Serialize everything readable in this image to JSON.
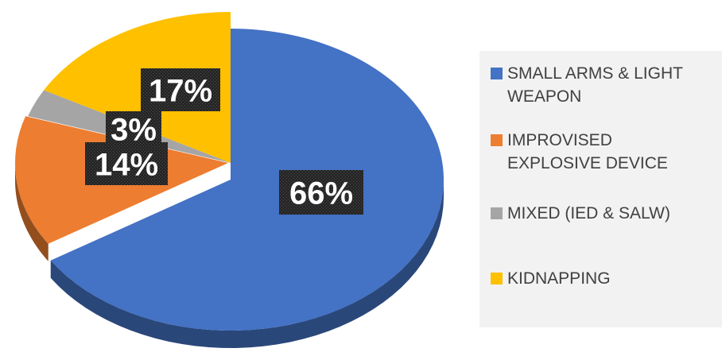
{
  "chart_data": {
    "type": "pie",
    "title": "",
    "series": [
      {
        "values": [
          66,
          14,
          3,
          17
        ]
      }
    ],
    "slices": [
      {
        "label": "SMALL ARMS & LIGHT WEAPON",
        "value": 66,
        "display": "66%",
        "color": "#4472c4"
      },
      {
        "label": "IMPROVISED EXPLOSIVE DEVICE",
        "value": 14,
        "display": "14%",
        "color": "#ed7d31"
      },
      {
        "label": "MIXED (IED & SALW)",
        "value": 3,
        "display": "3%",
        "color": "#a5a5a5"
      },
      {
        "label": "KIDNAPPING",
        "value": 17,
        "display": "17%",
        "color": "#ffc000"
      }
    ],
    "legend": {
      "placement": "right",
      "items": [
        {
          "text": "SMALL ARMS & LIGHT\nWEAPON",
          "color": "#4472c4"
        },
        {
          "text": "IMPROVISED\nEXPLOSIVE DEVICE",
          "color": "#ed7d31"
        },
        {
          "text": "MIXED (IED & SALW)",
          "color": "#a5a5a5"
        },
        {
          "text": "KIDNAPPING",
          "color": "#ffc000"
        }
      ]
    },
    "style": "3d-exploded-pie",
    "label_background": "#262626"
  }
}
